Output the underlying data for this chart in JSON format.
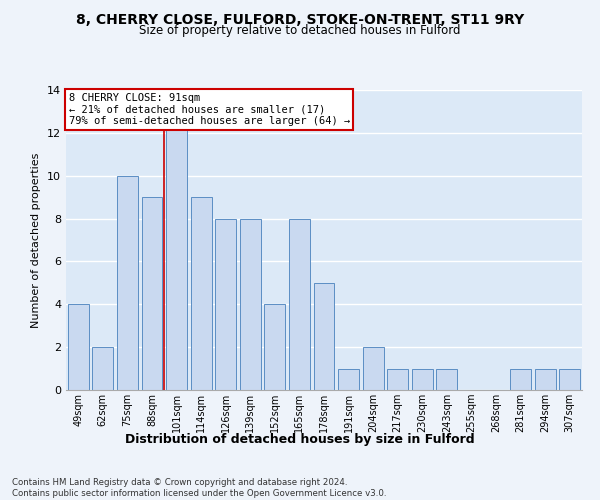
{
  "title": "8, CHERRY CLOSE, FULFORD, STOKE-ON-TRENT, ST11 9RY",
  "subtitle": "Size of property relative to detached houses in Fulford",
  "xlabel": "Distribution of detached houses by size in Fulford",
  "ylabel": "Number of detached properties",
  "categories": [
    "49sqm",
    "62sqm",
    "75sqm",
    "88sqm",
    "101sqm",
    "114sqm",
    "126sqm",
    "139sqm",
    "152sqm",
    "165sqm",
    "178sqm",
    "191sqm",
    "204sqm",
    "217sqm",
    "230sqm",
    "243sqm",
    "255sqm",
    "268sqm",
    "281sqm",
    "294sqm",
    "307sqm"
  ],
  "values": [
    4,
    2,
    10,
    9,
    13,
    9,
    8,
    8,
    4,
    8,
    5,
    1,
    2,
    1,
    1,
    1,
    0,
    0,
    1,
    1,
    1
  ],
  "bar_color": "#c9d9f0",
  "bar_edge_color": "#5b8ec4",
  "grid_color": "#ffffff",
  "bg_color": "#dce9f7",
  "fig_bg_color": "#eef3fa",
  "property_line_x": 3.5,
  "annotation_line1": "8 CHERRY CLOSE: 91sqm",
  "annotation_line2": "← 21% of detached houses are smaller (17)",
  "annotation_line3": "79% of semi-detached houses are larger (64) →",
  "annotation_box_color": "#ffffff",
  "annotation_border_color": "#cc0000",
  "footer_line1": "Contains HM Land Registry data © Crown copyright and database right 2024.",
  "footer_line2": "Contains public sector information licensed under the Open Government Licence v3.0.",
  "ylim": [
    0,
    14
  ],
  "yticks": [
    0,
    2,
    4,
    6,
    8,
    10,
    12,
    14
  ]
}
